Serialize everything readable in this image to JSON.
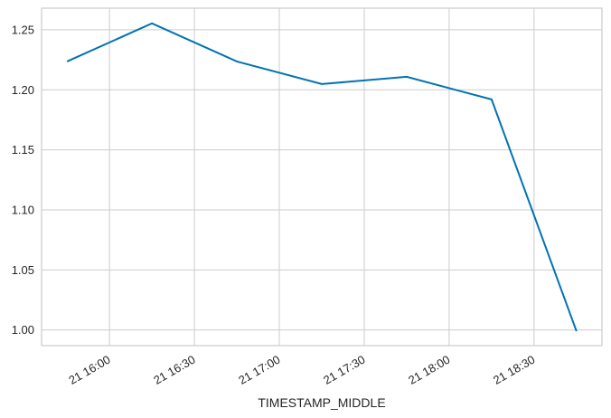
{
  "chart_data": {
    "type": "line",
    "xlabel": "TIMESTAMP_MIDDLE",
    "x": [
      "21 15:45",
      "21 16:15",
      "21 16:45",
      "21 17:15",
      "21 17:45",
      "21 18:15",
      "21 18:45"
    ],
    "series": [
      {
        "color": "#0173b2",
        "values": [
          1.2236,
          1.2553,
          1.2236,
          1.2048,
          1.2108,
          1.192,
          0.999
        ]
      }
    ],
    "xlim": [
      "21 15:36",
      "21 18:54"
    ],
    "xticks": [
      "21 16:00",
      "21 16:30",
      "21 17:00",
      "21 17:30",
      "21 18:00",
      "21 18:30"
    ],
    "ylim": [
      0.987,
      1.268
    ],
    "yticks": [
      {
        "value": 1.0,
        "label": "1.00"
      },
      1.05,
      {
        "value": 1.1,
        "label": "1.10"
      },
      1.15,
      {
        "value": 1.2,
        "label": "1.20"
      },
      1.25
    ],
    "grid": true
  }
}
